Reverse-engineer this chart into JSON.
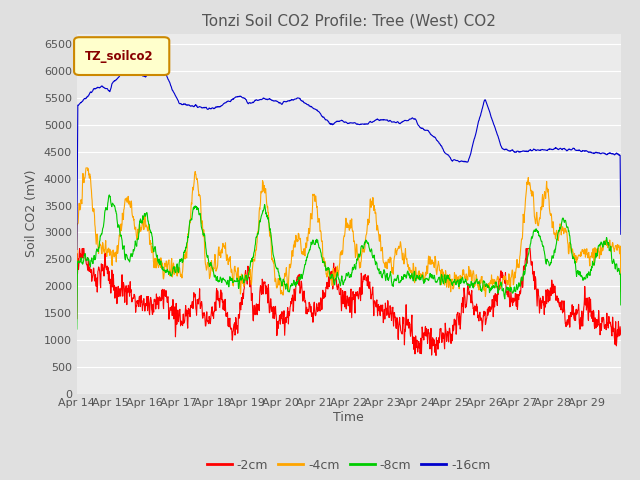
{
  "title": "Tonzi Soil CO2 Profile: Tree (West) CO2",
  "ylabel": "Soil CO2 (mV)",
  "xlabel": "Time",
  "legend_label": "TZ_soilco2",
  "series_labels": [
    "-2cm",
    "-4cm",
    "-8cm",
    "-16cm"
  ],
  "series_colors": [
    "#ff0000",
    "#ffa500",
    "#00cc00",
    "#0000cc"
  ],
  "x_tick_labels": [
    "Apr 14",
    "Apr 15",
    "Apr 16",
    "Apr 17",
    "Apr 18",
    "Apr 19",
    "Apr 20",
    "Apr 21",
    "Apr 22",
    "Apr 23",
    "Apr 24",
    "Apr 25",
    "Apr 26",
    "Apr 27",
    "Apr 28",
    "Apr 29"
  ],
  "ylim": [
    0,
    6700
  ],
  "yticks": [
    0,
    500,
    1000,
    1500,
    2000,
    2500,
    3000,
    3500,
    4000,
    4500,
    5000,
    5500,
    6000,
    6500
  ],
  "bg_color": "#e0e0e0",
  "plot_bg_color": "#ebebeb",
  "grid_color": "#ffffff",
  "title_fontsize": 11,
  "axis_fontsize": 9,
  "tick_fontsize": 8,
  "legend_fontsize": 9
}
